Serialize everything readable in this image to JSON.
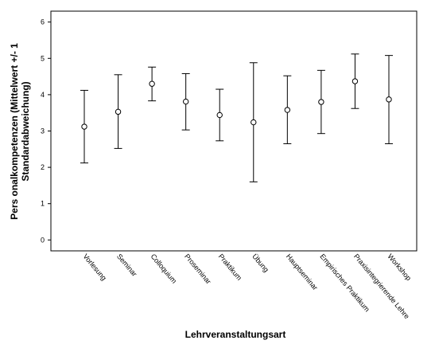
{
  "chart_data": {
    "type": "errorbar",
    "xlabel": "Lehrveranstaltungsart",
    "ylabel_lines": [
      "Pers onalkompetenzen (Mittelwert +/- 1",
      "Standardabweichung)"
    ],
    "ylim": [
      -0.3,
      6.3
    ],
    "yticks": [
      0,
      1,
      2,
      3,
      4,
      5,
      6
    ],
    "grid": false,
    "categories": [
      "Vorlesung",
      "Seminar",
      "Colloquium",
      "Proseminar",
      "Praktikum",
      "Übung",
      "Hauptseminar",
      "Empirisches Praktikum",
      "Praxisintegrierende Lehre",
      "Workshop"
    ],
    "means": [
      3.12,
      3.53,
      4.3,
      3.81,
      3.44,
      3.24,
      3.58,
      3.8,
      4.37,
      3.87
    ],
    "lower": [
      2.12,
      2.52,
      3.83,
      3.03,
      2.73,
      1.6,
      2.65,
      2.93,
      3.62,
      2.65
    ],
    "upper": [
      4.12,
      4.55,
      4.76,
      4.58,
      4.15,
      4.88,
      4.52,
      4.67,
      5.12,
      5.08
    ]
  }
}
